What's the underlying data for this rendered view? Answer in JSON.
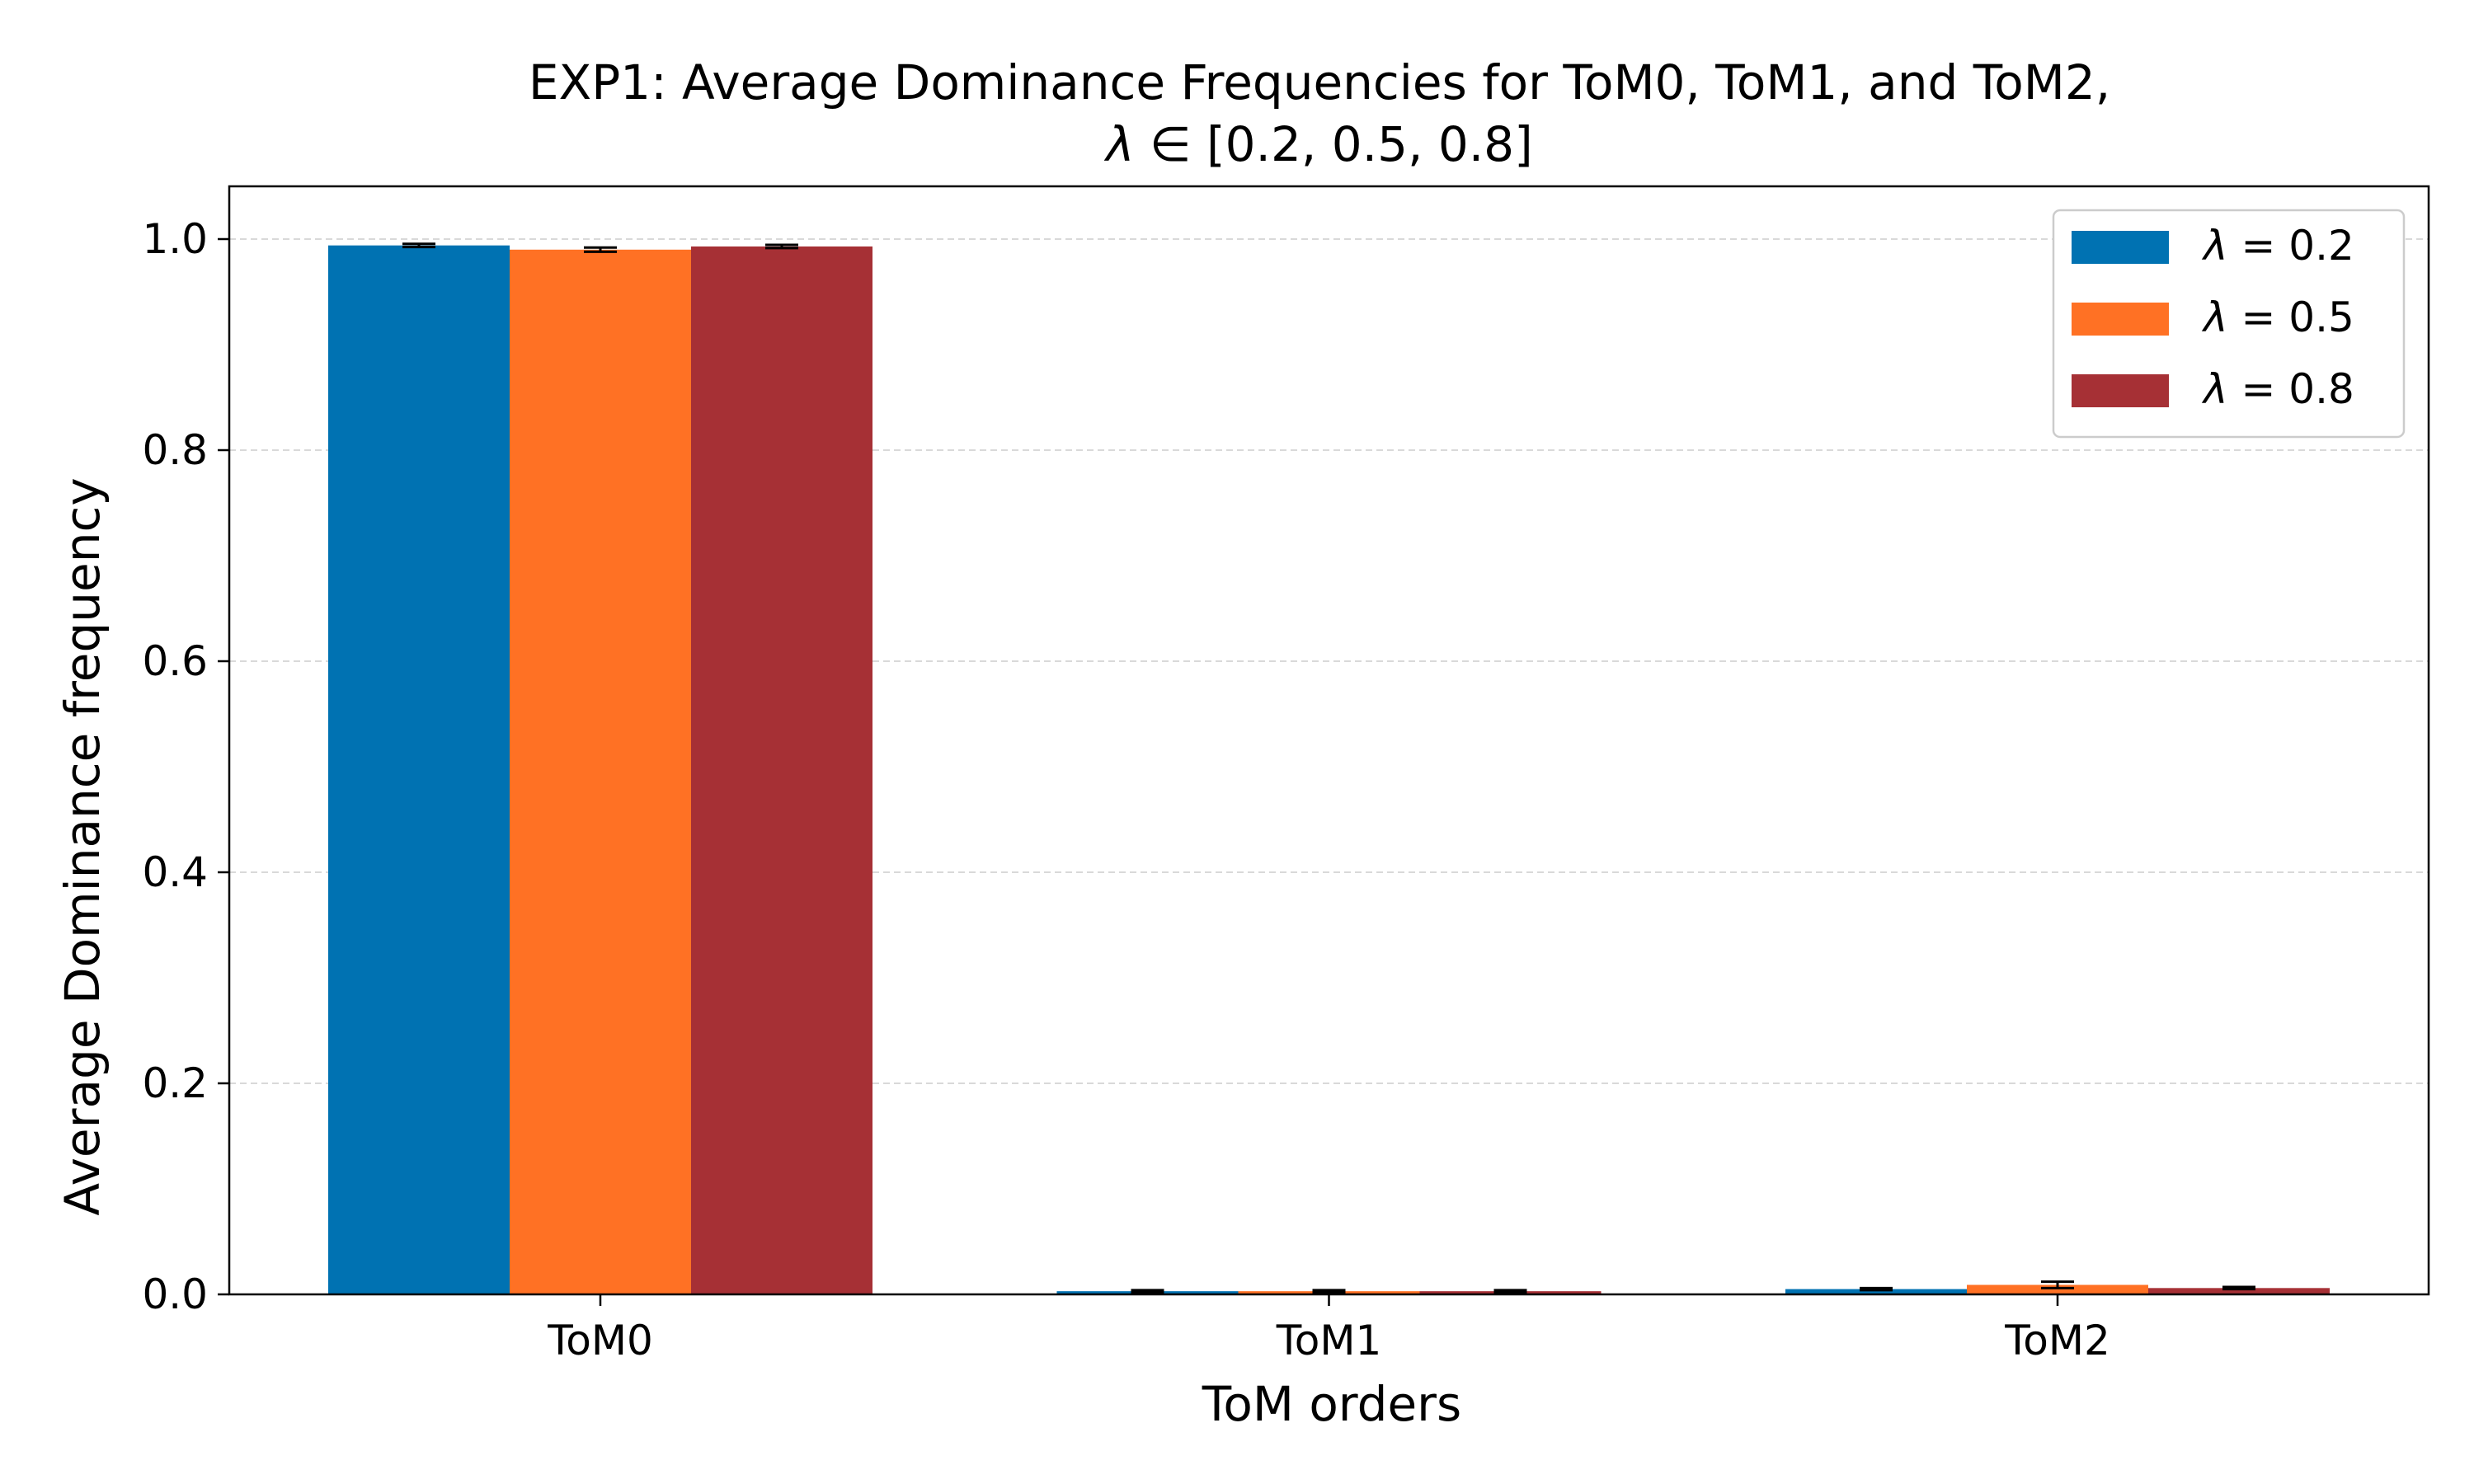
{
  "chart_data": {
    "type": "bar",
    "title_line1": "EXP1: Average Dominance Frequencies for ToM0, ToM1, and ToM2,",
    "title_line2_symbol": "λ",
    "title_line2_rest": " ∈ [0.2, 0.5, 0.8]",
    "xlabel": "ToM orders",
    "ylabel": "Average Dominance frequency",
    "categories": [
      "ToM0",
      "ToM1",
      "ToM2"
    ],
    "ylim": [
      0,
      1.05
    ],
    "yticks": [
      "0.0",
      "0.2",
      "0.4",
      "0.6",
      "0.8",
      "1.0"
    ],
    "grid": "horizontal dashed",
    "legend_position": "top-right",
    "series": [
      {
        "symbol": "λ",
        "name": " = 0.2",
        "color": "#0072b2",
        "values": [
          0.994,
          0.003,
          0.005
        ],
        "errors": [
          0.0015,
          0.001,
          0.001
        ]
      },
      {
        "symbol": "λ",
        "name": " = 0.5",
        "color": "#ff7124",
        "values": [
          0.99,
          0.003,
          0.009
        ],
        "errors": [
          0.002,
          0.001,
          0.003
        ]
      },
      {
        "symbol": "λ",
        "name": " = 0.8",
        "color": "#a63035",
        "values": [
          0.993,
          0.003,
          0.006
        ],
        "errors": [
          0.0015,
          0.001,
          0.001
        ]
      }
    ]
  }
}
